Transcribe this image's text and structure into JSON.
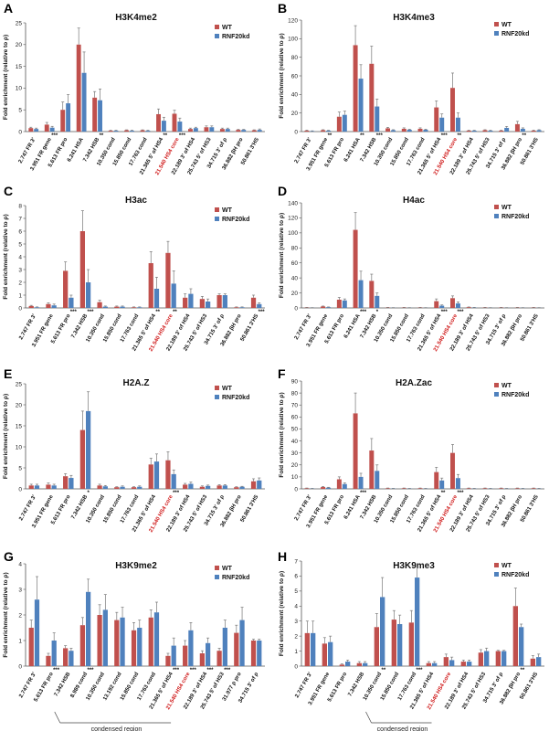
{
  "colors": {
    "wt": "#c0504d",
    "kd": "#4f81bd",
    "highlight": "#d01c1c"
  },
  "chart_data": [
    {
      "letter": "A",
      "type": "bar",
      "title": "H3K4me2",
      "ylabel": "Fold enrichment (relative to ρ)",
      "ylim": [
        0,
        25
      ],
      "yticks": [
        0,
        5,
        10,
        15,
        20,
        25
      ],
      "legend": [
        "WT",
        "RNF20kd"
      ],
      "legend_position": "top-right",
      "categories": [
        "2.747 FR 3'",
        "3.951 FR gene",
        "5.613 FR pro",
        "6.241 HSA",
        "7.342 HSB",
        "10.350 cond",
        "15.850 cond",
        "17.763 cond",
        "21.365 5' of HS4",
        "21.540 HS4 core",
        "22.189 3' of HS4",
        "25.743 5' of HS3",
        "34.715 3' of ρ",
        "36.882 βH pro",
        "50.861 3'HS"
      ],
      "red_categories": [
        "21.540 HS4 core"
      ],
      "series": [
        {
          "name": "WT",
          "values": [
            0.8,
            1.6,
            5.0,
            20.0,
            7.8,
            0.2,
            0.3,
            0.3,
            4.0,
            4.1,
            0.6,
            1.0,
            0.6,
            0.4,
            0.3
          ],
          "errors": [
            0.2,
            0.5,
            1.8,
            3.8,
            1.4,
            0.1,
            0.1,
            0.1,
            1.2,
            0.8,
            0.2,
            0.3,
            0.2,
            0.1,
            0.1
          ]
        },
        {
          "name": "RNF20kd",
          "values": [
            0.6,
            0.9,
            6.5,
            13.5,
            7.2,
            0.2,
            0.2,
            0.2,
            2.5,
            2.3,
            0.8,
            1.0,
            0.6,
            0.4,
            0.4
          ],
          "errors": [
            0.2,
            0.3,
            2.0,
            4.8,
            2.6,
            0.1,
            0.1,
            0.1,
            0.8,
            0.8,
            0.2,
            0.3,
            0.2,
            0.1,
            0.2
          ]
        }
      ],
      "stars": [
        "",
        "***",
        "",
        "",
        "**",
        "",
        "",
        "",
        "**",
        "***",
        "",
        "",
        "",
        "",
        ""
      ]
    },
    {
      "letter": "B",
      "type": "bar",
      "title": "H3K4me3",
      "ylabel": "Fold enrichment (relative to ρ)",
      "ylim": [
        0,
        120
      ],
      "yticks": [
        0,
        20,
        40,
        60,
        80,
        100,
        120
      ],
      "legend": [
        "WT",
        "RNF20kd"
      ],
      "legend_position": "top-right",
      "categories": [
        "2.747 FR 3'",
        "3.951 FR gene",
        "5.613 FR pro",
        "6.241 HSA",
        "7.342 HSB",
        "10.350 cond",
        "15.850 cond",
        "17.763 cond",
        "21.365 5' of HS4",
        "21.540 HS4 core",
        "22.189 3' of HS4",
        "25.743 5' of HS3",
        "34.715 3' of ρ",
        "36.882 βH pro",
        "50.861 3'HS"
      ],
      "red_categories": [
        "21.540 HS4 core"
      ],
      "series": [
        {
          "name": "WT",
          "values": [
            1.0,
            1.5,
            16.0,
            93.0,
            73.0,
            3.5,
            3.0,
            3.0,
            26.0,
            47.0,
            1.0,
            1.5,
            1.0,
            8.0,
            1.0
          ],
          "errors": [
            0.5,
            0.5,
            5.0,
            21.0,
            19.0,
            1.0,
            1.0,
            1.0,
            7.0,
            16.0,
            0.4,
            0.5,
            0.4,
            3.0,
            0.5
          ]
        },
        {
          "name": "RNF20kd",
          "values": [
            0.5,
            1.0,
            18.0,
            57.0,
            27.0,
            1.5,
            2.0,
            2.0,
            15.0,
            15.0,
            1.0,
            1.0,
            4.0,
            3.0,
            1.5
          ],
          "errors": [
            0.3,
            0.4,
            4.0,
            15.0,
            8.0,
            0.5,
            0.5,
            0.5,
            4.0,
            5.0,
            0.4,
            0.4,
            1.5,
            1.0,
            0.5
          ]
        }
      ],
      "stars": [
        "",
        "**",
        "",
        "**",
        "***",
        "",
        "",
        "",
        "***",
        "**",
        "",
        "",
        "",
        "**",
        ""
      ]
    },
    {
      "letter": "C",
      "type": "bar",
      "title": "H3ac",
      "ylabel": "Fold enrichment (relative to ρ)",
      "ylim": [
        0,
        8
      ],
      "yticks": [
        0,
        1,
        2,
        3,
        4,
        5,
        6,
        7,
        8
      ],
      "legend": [
        "WT",
        "RNF20kd"
      ],
      "legend_position": "top-right",
      "categories": [
        "2.747 FR 3'",
        "3.951 FR gene",
        "5.613 FR pro",
        "7.342 HSB",
        "10.350 cond",
        "15.850 cond",
        "17.763 cond",
        "21.365 5' of HS4",
        "21.540 HS4 core",
        "22.189 3' of HS4",
        "25.743 5' of HS3",
        "34.715 3' of ρ",
        "36.882 βH pro",
        "50.861 3'HS"
      ],
      "red_categories": [
        "21.540 HS4 core"
      ],
      "series": [
        {
          "name": "WT",
          "values": [
            0.15,
            0.3,
            2.9,
            6.0,
            0.45,
            0.1,
            0.05,
            3.5,
            4.3,
            0.8,
            0.7,
            1.0,
            0.05,
            0.8
          ],
          "errors": [
            0.05,
            0.1,
            0.7,
            1.6,
            0.15,
            0.05,
            0.03,
            0.9,
            0.9,
            0.3,
            0.2,
            0.1,
            0.03,
            0.2
          ]
        },
        {
          "name": "RNF20kd",
          "values": [
            0.05,
            0.2,
            0.8,
            2.0,
            0.1,
            0.1,
            0.05,
            1.5,
            1.9,
            1.1,
            0.5,
            1.0,
            0.05,
            0.3
          ],
          "errors": [
            0.03,
            0.1,
            0.2,
            1.0,
            0.05,
            0.05,
            0.03,
            0.9,
            1.0,
            0.4,
            0.2,
            0.1,
            0.03,
            0.1
          ]
        }
      ],
      "stars": [
        "",
        "",
        "***",
        "***",
        "",
        "",
        "",
        "**",
        "**",
        "",
        "",
        "",
        "",
        "***"
      ]
    },
    {
      "letter": "D",
      "type": "bar",
      "title": "H4ac",
      "ylabel": "Fold enrichment (relative to ρ)",
      "ylim": [
        0,
        140
      ],
      "yticks": [
        0,
        20,
        40,
        60,
        80,
        100,
        120,
        140
      ],
      "legend": [
        "WT",
        "RNF20kd"
      ],
      "legend_position": "top-right",
      "categories": [
        "2.747 FR 3'",
        "3.951 FR gene",
        "5.613 FR pro",
        "6.241 HSA",
        "7.342 HSB",
        "10.350 cond",
        "15.850 cond",
        "17.763 cond",
        "21.365 5' of HS4",
        "21.540 HS4 core",
        "22.189 3' of HS4",
        "25.743 5' of HS3",
        "34.715 3' of ρ",
        "36.882 βH pro",
        "50.861 3'HS"
      ],
      "red_categories": [
        "21.540 HS4 core"
      ],
      "series": [
        {
          "name": "WT",
          "values": [
            0.5,
            2.0,
            11.0,
            104.0,
            36.0,
            0.5,
            0.5,
            0.5,
            9.0,
            13.0,
            1.0,
            0.5,
            0.5,
            0.5,
            0.5
          ],
          "errors": [
            0.2,
            0.5,
            3.0,
            23.0,
            9.0,
            0.2,
            0.2,
            0.2,
            3.0,
            3.0,
            0.3,
            0.2,
            0.2,
            0.2,
            0.2
          ]
        },
        {
          "name": "RNF20kd",
          "values": [
            0.3,
            1.0,
            10.0,
            37.0,
            16.0,
            0.3,
            0.3,
            0.3,
            3.0,
            6.0,
            0.5,
            0.3,
            0.3,
            0.3,
            0.3
          ],
          "errors": [
            0.1,
            0.3,
            2.0,
            12.0,
            4.0,
            0.1,
            0.1,
            0.1,
            1.0,
            2.0,
            0.2,
            0.1,
            0.1,
            0.1,
            0.1
          ]
        }
      ],
      "stars": [
        "",
        "",
        "",
        "***",
        "*",
        "",
        "",
        "",
        "***",
        "***",
        "",
        "",
        "",
        "",
        ""
      ]
    },
    {
      "letter": "E",
      "type": "bar",
      "title": "H2A.Z",
      "ylabel": "Fold enrichment (relative to ρ)",
      "ylim": [
        0,
        25
      ],
      "yticks": [
        0,
        5,
        10,
        15,
        20,
        25
      ],
      "legend": [
        "WT",
        "RNF20kd"
      ],
      "legend_position": "top-right",
      "categories": [
        "2.747 FR 3'",
        "3.951 FR gene",
        "5.613 FR pro",
        "7.342 HSB",
        "10.350 cond",
        "15.850 cond",
        "17.763 cond",
        "21.365 5' of HS4",
        "21.540 HS4 core",
        "22.189 3' of HS4",
        "25.743 5' of HS3",
        "34.715 3' of ρ",
        "36.882 βH pro",
        "50.861 3'HS"
      ],
      "red_categories": [
        "21.540 HS4 core"
      ],
      "series": [
        {
          "name": "WT",
          "values": [
            0.8,
            1.0,
            3.0,
            14.0,
            0.8,
            0.4,
            0.4,
            5.8,
            6.8,
            1.0,
            0.5,
            0.8,
            0.4,
            1.8
          ],
          "errors": [
            0.3,
            0.4,
            0.6,
            4.5,
            0.3,
            0.1,
            0.1,
            1.5,
            2.0,
            0.3,
            0.2,
            0.2,
            0.1,
            0.6
          ]
        },
        {
          "name": "RNF20kd",
          "values": [
            0.8,
            0.8,
            2.6,
            18.5,
            0.6,
            0.5,
            0.5,
            6.5,
            3.5,
            1.2,
            0.7,
            0.8,
            0.5,
            2.0
          ],
          "errors": [
            0.3,
            0.3,
            0.6,
            4.6,
            0.2,
            0.2,
            0.2,
            1.8,
            1.0,
            0.4,
            0.2,
            0.2,
            0.1,
            0.6
          ]
        }
      ],
      "stars": [
        "",
        "",
        "",
        "*",
        "",
        "",
        "",
        "",
        "***",
        "",
        "",
        "",
        "",
        ""
      ]
    },
    {
      "letter": "F",
      "type": "bar",
      "title": "H2A.Zac",
      "ylabel": "Fold enrichment (relative to ρ)",
      "ylim": [
        0,
        90
      ],
      "yticks": [
        0,
        10,
        20,
        30,
        40,
        50,
        60,
        70,
        80,
        90
      ],
      "legend": [
        "WT",
        "RNF20kd"
      ],
      "legend_position": "top-right",
      "categories": [
        "2.747 FR 3'",
        "3.951 FR gene",
        "5.613 FR pro",
        "6.241 HSA",
        "7.342 HSB",
        "10.350 cond",
        "15.850 cond",
        "17.763 cond",
        "21.365 5' of HS4",
        "21.540 HS4 core",
        "22.189 3' of HS4",
        "25.743 5' of HS3",
        "34.715 3' of ρ",
        "36.882 βH pro",
        "50.861 3'HS"
      ],
      "red_categories": [
        "21.540 HS4 core"
      ],
      "series": [
        {
          "name": "WT",
          "values": [
            0.5,
            1.5,
            8.0,
            63.0,
            32.0,
            0.5,
            0.5,
            0.5,
            14.0,
            30.0,
            0.5,
            0.5,
            0.5,
            0.5,
            0.5
          ],
          "errors": [
            0.2,
            0.5,
            2.0,
            17.0,
            10.0,
            0.2,
            0.2,
            0.2,
            4.0,
            7.0,
            0.2,
            0.2,
            0.2,
            0.2,
            0.2
          ]
        },
        {
          "name": "RNF20kd",
          "values": [
            0.3,
            1.0,
            4.0,
            10.0,
            15.0,
            0.3,
            0.3,
            0.3,
            7.0,
            9.0,
            0.3,
            0.3,
            0.3,
            0.3,
            0.3
          ],
          "errors": [
            0.1,
            0.3,
            1.0,
            3.0,
            5.0,
            0.1,
            0.1,
            0.1,
            2.0,
            3.0,
            0.1,
            0.1,
            0.1,
            0.1,
            0.1
          ]
        }
      ],
      "stars": [
        "",
        "",
        "",
        "***",
        "",
        "",
        "",
        "",
        "**",
        "***",
        "",
        "",
        "",
        "",
        ""
      ]
    },
    {
      "letter": "G",
      "type": "bar",
      "title": "H3K9me2",
      "ylabel": "Fold enrichment (relative to ρ)",
      "ylim": [
        0,
        4
      ],
      "yticks": [
        0,
        1,
        2,
        3,
        4
      ],
      "legend": [
        "WT",
        "RNF20kd"
      ],
      "legend_position": "top-right",
      "categories": [
        "2.747 FR 3'",
        "5.613 FR pro",
        "7.342 HSB",
        "8.989 cond",
        "10.350 cond",
        "13.192 cond",
        "15.850 cond",
        "17.763 cond",
        "21.365 5' of HS4",
        "21.540 HS4 core",
        "22.189 3' of HS4",
        "25.743 5' of HS3",
        "31.977 ρ pro",
        "34.715 3' of ρ"
      ],
      "red_categories": [
        "21.540 HS4 core"
      ],
      "series": [
        {
          "name": "WT",
          "values": [
            1.5,
            0.4,
            0.7,
            1.6,
            2.0,
            1.8,
            1.4,
            1.9,
            0.4,
            0.8,
            0.5,
            0.6,
            1.3,
            1.0
          ],
          "errors": [
            0.3,
            0.1,
            0.1,
            0.3,
            0.4,
            0.3,
            0.3,
            0.3,
            0.1,
            0.2,
            0.1,
            0.1,
            0.3,
            0.05
          ]
        },
        {
          "name": "RNF20kd",
          "values": [
            2.6,
            1.0,
            0.6,
            2.9,
            2.2,
            1.9,
            1.5,
            2.1,
            0.8,
            1.4,
            0.9,
            1.5,
            1.8,
            1.0
          ],
          "errors": [
            0.9,
            0.3,
            0.1,
            0.5,
            0.6,
            0.4,
            0.3,
            0.4,
            0.3,
            0.3,
            0.2,
            0.3,
            0.5,
            0.05
          ]
        }
      ],
      "stars": [
        "",
        "***",
        "",
        "***",
        "",
        "",
        "",
        "",
        "***",
        "***",
        "***",
        "***",
        "",
        ""
      ],
      "bracket_label": "condensed region"
    },
    {
      "letter": "H",
      "type": "bar",
      "title": "H3K9me3",
      "ylabel": "Fold enrichment (relative to ρ)",
      "ylim": [
        0,
        7
      ],
      "yticks": [
        0,
        1,
        2,
        3,
        4,
        5,
        6,
        7
      ],
      "legend": [
        "WT",
        "RNF20kd"
      ],
      "legend_position": "top-right",
      "categories": [
        "2.747 FR 3'",
        "3.951 FR gene",
        "5.613 FR pro",
        "7.342 HSB",
        "10.350 cond",
        "15.850 cond",
        "17.763 cond",
        "21.365 5' of HS4",
        "21.540 HS4 core",
        "22.189 3' of HS4",
        "25.743 5' of HS3",
        "34.715 3' of ρ",
        "36.882 βH pro",
        "50.861 3'HS"
      ],
      "red_categories": [
        "21.540 HS4 core"
      ],
      "series": [
        {
          "name": "WT",
          "values": [
            2.2,
            1.5,
            0.1,
            0.2,
            2.6,
            3.1,
            2.9,
            0.2,
            0.6,
            0.3,
            0.9,
            1.0,
            4.0,
            0.5
          ],
          "errors": [
            0.8,
            0.4,
            0.05,
            0.1,
            0.9,
            0.6,
            0.8,
            0.1,
            0.2,
            0.1,
            0.2,
            0.05,
            1.2,
            0.2
          ]
        },
        {
          "name": "RNF20kd",
          "values": [
            2.2,
            1.6,
            0.3,
            0.2,
            4.6,
            2.8,
            5.9,
            0.2,
            0.4,
            0.3,
            1.0,
            1.0,
            2.6,
            0.6
          ],
          "errors": [
            0.8,
            0.4,
            0.1,
            0.1,
            1.3,
            0.6,
            0.7,
            0.1,
            0.2,
            0.1,
            0.2,
            0.05,
            0.2,
            0.2
          ]
        }
      ],
      "stars": [
        "",
        "",
        "",
        "",
        "**",
        "",
        "***",
        "",
        "",
        "",
        "",
        "",
        "**",
        ""
      ],
      "bracket_label": "condensed region"
    }
  ]
}
